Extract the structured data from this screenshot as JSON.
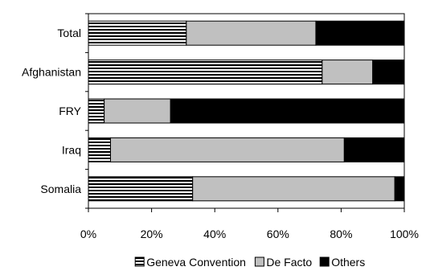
{
  "chart_data": {
    "type": "bar",
    "orientation": "horizontal",
    "stacked": true,
    "normalized": true,
    "categories": [
      "Total",
      "Afghanistan",
      "FRY",
      "Iraq",
      "Somalia"
    ],
    "series": [
      {
        "name": "Geneva Convention",
        "values": [
          31,
          74,
          5,
          7,
          33
        ],
        "color": "#ffffff",
        "pattern": "horizontal-stripes"
      },
      {
        "name": "De Facto",
        "values": [
          41,
          16,
          21,
          74,
          64
        ],
        "color": "#c0c0c0",
        "pattern": "solid"
      },
      {
        "name": "Others",
        "values": [
          28,
          10,
          74,
          19,
          3
        ],
        "color": "#000000",
        "pattern": "solid"
      }
    ],
    "x_ticks": [
      "0%",
      "20%",
      "40%",
      "60%",
      "80%",
      "100%"
    ],
    "xlim": [
      0,
      100
    ],
    "grid": false,
    "legend_position": "bottom-center"
  }
}
